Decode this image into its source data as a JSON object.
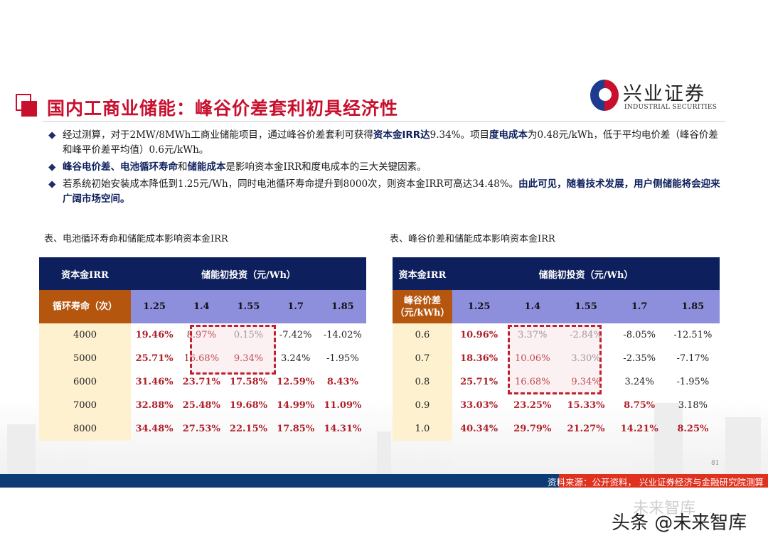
{
  "title": "国内工商业储能：峰谷价差套利初具经济性",
  "logo": {
    "cn": "兴业证券",
    "en": "INDUSTRIAL SECURITIES"
  },
  "bullets": [
    {
      "parts": [
        {
          "t": "经过测算，对于2MW/8MWh工商业储能项目，通过峰谷价差套利可获得"
        },
        {
          "t": "资本金IRR达",
          "b": true
        },
        {
          "t": "9.34%。项目"
        },
        {
          "t": "度电成本",
          "b": true
        },
        {
          "t": "为0.48元/kWh，低于平均电价差（峰谷价差和峰平价差平均值）0.6元/kWh。"
        }
      ]
    },
    {
      "parts": [
        {
          "t": "峰谷电价差、电池循环寿命",
          "b": true
        },
        {
          "t": "和"
        },
        {
          "t": "储能成本",
          "b": true
        },
        {
          "t": "是影响资本金IRR和度电成本的三大关键因素。"
        }
      ]
    },
    {
      "parts": [
        {
          "t": "若系统初始安装成本降低到1.25元/Wh，同时电池循环寿命提升到8000次，则资本金IRR可高达34.48%。"
        },
        {
          "t": "由此可见，随着技术发展，用户侧储能将会迎来广阔市场空间。",
          "b": true
        }
      ]
    }
  ],
  "tables": [
    {
      "caption": "表、电池循环寿命和储能成本影响资本金IRR",
      "corner": "资本金IRR",
      "group": "储能初投资（元/Wh）",
      "row_label": "循环寿命（次）",
      "cols": [
        "1.25",
        "1.4",
        "1.55",
        "1.7",
        "1.85"
      ],
      "rows": [
        {
          "label": "4000",
          "cells": [
            "19.46%",
            "8.97%",
            "0.15%",
            "-7.42%",
            "-14.02%"
          ],
          "styles": [
            "red",
            "rn",
            "g",
            "k",
            "k"
          ]
        },
        {
          "label": "5000",
          "cells": [
            "25.71%",
            "16.68%",
            "9.34%",
            "3.24%",
            "-1.95%"
          ],
          "styles": [
            "red",
            "rn",
            "rn",
            "k",
            "k"
          ]
        },
        {
          "label": "6000",
          "cells": [
            "31.46%",
            "23.71%",
            "17.58%",
            "12.59%",
            "8.43%"
          ],
          "styles": [
            "red",
            "red",
            "red",
            "red",
            "red"
          ]
        },
        {
          "label": "7000",
          "cells": [
            "32.88%",
            "25.48%",
            "19.68%",
            "14.99%",
            "11.09%"
          ],
          "styles": [
            "red",
            "red",
            "red",
            "red",
            "red"
          ]
        },
        {
          "label": "8000",
          "cells": [
            "34.48%",
            "27.53%",
            "22.15%",
            "17.85%",
            "14.31%"
          ],
          "styles": [
            "red",
            "red",
            "red",
            "red",
            "red"
          ]
        }
      ]
    },
    {
      "caption": "表、峰谷价差和储能成本影响资本金IRR",
      "corner": "资本金IRR",
      "group": "储能初投资（元/Wh）",
      "row_label": "峰谷价差（元/kWh）",
      "cols": [
        "1.25",
        "1.4",
        "1.55",
        "1.7",
        "1.85"
      ],
      "rows": [
        {
          "label": "0.6",
          "cells": [
            "10.96%",
            "3.37%",
            "-2.84%",
            "-8.05%",
            "-12.51%"
          ],
          "styles": [
            "red",
            "g",
            "g",
            "k",
            "k"
          ]
        },
        {
          "label": "0.7",
          "cells": [
            "18.36%",
            "10.06%",
            "3.30%",
            "-2.35%",
            "-7.17%"
          ],
          "styles": [
            "red",
            "rn",
            "g",
            "k",
            "k"
          ]
        },
        {
          "label": "0.8",
          "cells": [
            "25.71%",
            "16.68%",
            "9.34%",
            "3.24%",
            "-1.95%"
          ],
          "styles": [
            "red",
            "rn",
            "rn",
            "k",
            "k"
          ]
        },
        {
          "label": "0.9",
          "cells": [
            "33.03%",
            "23.25%",
            "15.33%",
            "8.75%",
            "3.18%"
          ],
          "styles": [
            "red",
            "red",
            "red",
            "red",
            "k"
          ]
        },
        {
          "label": "1.0",
          "cells": [
            "40.34%",
            "29.79%",
            "21.27%",
            "14.21%",
            "8.25%"
          ],
          "styles": [
            "red",
            "red",
            "red",
            "red",
            "red"
          ]
        }
      ]
    }
  ],
  "page_number": "81",
  "source": "资料来源：公开资料， 兴业证券经济与金融研究院测算",
  "watermark": "头条 @未来智库",
  "watermark_faint": "未来智库",
  "colors": {
    "brand_red": "#c8102e",
    "navy": "#0d1f5c",
    "orange": "#b5560f",
    "lavender": "#8e8fdc",
    "pale_yellow": "#fdf1cf"
  }
}
